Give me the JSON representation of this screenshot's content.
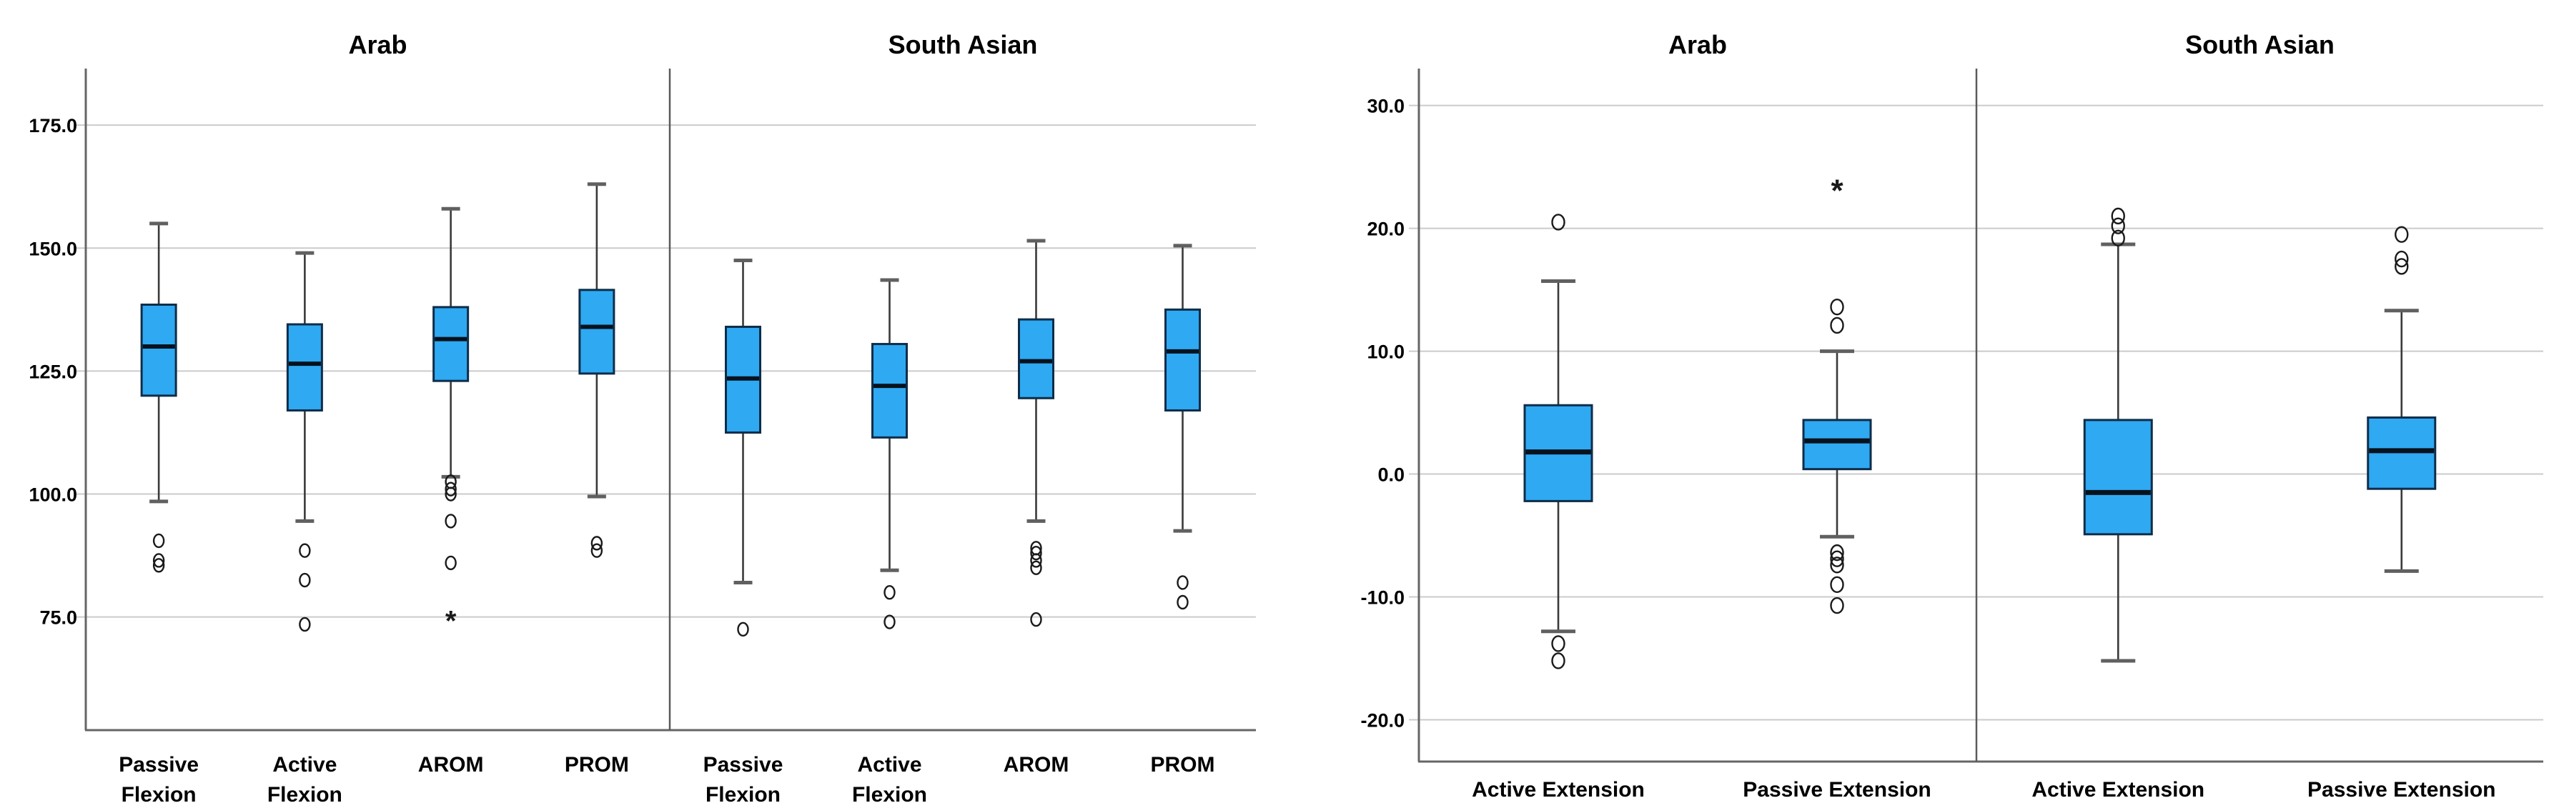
{
  "page": {
    "background_color": "#ffffff",
    "text_color": "#000000"
  },
  "styles": {
    "box_fill": "#2FA9F2",
    "box_stroke": "#0E2D49",
    "median_color": "#06121E",
    "whisker_color": "#3A3A3A",
    "cap_color": "#606060",
    "gridline_color": "#CBCBCD",
    "spine_color": "#666666",
    "divider_color": "#5A5A5A",
    "outlier_color": "#1A1A1A",
    "label_color": "#000000"
  },
  "chart_data": [
    {
      "type": "boxplot",
      "id": "flexion",
      "panel_layout": "two facets sharing one y axis",
      "ylim": [
        52,
        186.5
      ],
      "grid": true,
      "legend": "none",
      "yticks": [
        {
          "v": 175,
          "label": "175.0"
        },
        {
          "v": 150,
          "label": "150.0"
        },
        {
          "v": 125,
          "label": "125.0"
        },
        {
          "v": 100,
          "label": "100.0"
        },
        {
          "v": 75,
          "label": "75.0"
        }
      ],
      "panels": [
        {
          "title": "Arab",
          "boxes": [
            {
              "category": "Passive\nFlexion",
              "whislo": 98.5,
              "q1": 120,
              "med": 130,
              "q3": 138.5,
              "whishi": 155,
              "outliers": [
                90.5,
                86.5,
                85.5
              ],
              "extremes": []
            },
            {
              "category": "Active\nFlexion",
              "whislo": 94.5,
              "q1": 117,
              "med": 126.5,
              "q3": 134.5,
              "whishi": 149,
              "outliers": [
                88.5,
                82.5,
                73.5
              ],
              "extremes": []
            },
            {
              "category": "AROM",
              "whislo": 103.5,
              "q1": 123,
              "med": 131.5,
              "q3": 138,
              "whishi": 158,
              "outliers": [
                102.5,
                101,
                100,
                94.5,
                86
              ],
              "extremes": [
                74.5
              ]
            },
            {
              "category": "PROM",
              "whislo": 99.5,
              "q1": 124.5,
              "med": 134,
              "q3": 141.5,
              "whishi": 163,
              "outliers": [
                90,
                88.5
              ],
              "extremes": []
            }
          ]
        },
        {
          "title": "South Asian",
          "boxes": [
            {
              "category": "Passive\nFlexion",
              "whislo": 82,
              "q1": 112.5,
              "med": 123.5,
              "q3": 134,
              "whishi": 147.5,
              "outliers": [
                72.5
              ],
              "extremes": []
            },
            {
              "category": "Active\nFlexion",
              "whislo": 84.5,
              "q1": 111.5,
              "med": 122,
              "q3": 130.5,
              "whishi": 143.5,
              "outliers": [
                80,
                74
              ],
              "extremes": []
            },
            {
              "category": "AROM",
              "whislo": 94.5,
              "q1": 119.5,
              "med": 127,
              "q3": 135.5,
              "whishi": 151.5,
              "outliers": [
                89,
                88,
                86.5,
                85,
                74.5
              ],
              "extremes": []
            },
            {
              "category": "PROM",
              "whislo": 92.5,
              "q1": 117,
              "med": 129,
              "q3": 137.5,
              "whishi": 150.5,
              "outliers": [
                82,
                78
              ],
              "extremes": []
            }
          ]
        }
      ]
    },
    {
      "type": "boxplot",
      "id": "extension",
      "panel_layout": "two facets sharing one y axis",
      "ylim": [
        -23.4,
        33
      ],
      "grid": true,
      "legend": "none",
      "yticks": [
        {
          "v": 30,
          "label": "30.0"
        },
        {
          "v": 20,
          "label": "20.0"
        },
        {
          "v": 10,
          "label": "10.0"
        },
        {
          "v": 0,
          "label": "0.0"
        },
        {
          "v": -10,
          "label": "-10.0"
        },
        {
          "v": -20,
          "label": "-20.0"
        }
      ],
      "panels": [
        {
          "title": "Arab",
          "boxes": [
            {
              "category": "Active Extension",
              "whislo": -12.8,
              "q1": -2.2,
              "med": 1.8,
              "q3": 5.6,
              "whishi": 15.7,
              "outliers": [
                20.5,
                -13.8,
                -15.2
              ],
              "extremes": []
            },
            {
              "category": "Passive Extension",
              "whislo": -5.1,
              "q1": 0.4,
              "med": 2.7,
              "q3": 4.4,
              "whishi": 10,
              "outliers": [
                13.6,
                12.1,
                -6.4,
                -6.9,
                -7.4,
                -9.0,
                -10.7
              ],
              "extremes": [
                23.2
              ]
            }
          ]
        },
        {
          "title": "South Asian",
          "boxes": [
            {
              "category": "Active Extension",
              "whislo": -15.2,
              "q1": -4.9,
              "med": -1.5,
              "q3": 4.4,
              "whishi": 18.7,
              "outliers": [
                21.0,
                20.2,
                19.2
              ],
              "extremes": []
            },
            {
              "category": "Passive Extension",
              "whislo": -7.9,
              "q1": -1.2,
              "med": 1.9,
              "q3": 4.6,
              "whishi": 13.3,
              "outliers": [
                19.5,
                17.5,
                16.9
              ],
              "extremes": []
            }
          ]
        }
      ]
    }
  ]
}
